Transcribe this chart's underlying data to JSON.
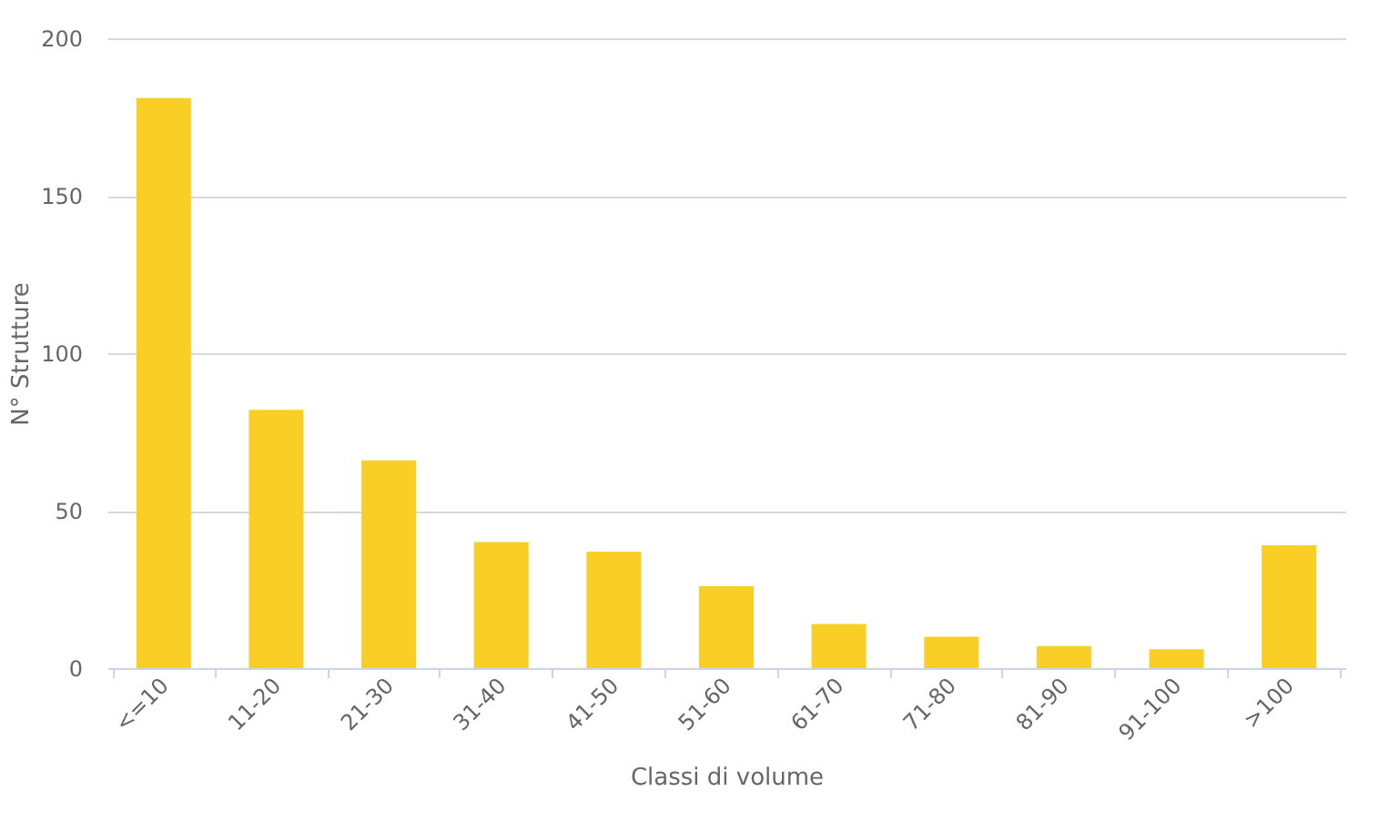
{
  "chart_data": {
    "type": "bar",
    "xlabel": "Classi di volume",
    "ylabel": "N° Strutture",
    "categories": [
      "<=10",
      "11-20",
      "21-30",
      "31-40",
      "41-50",
      "51-60",
      "61-70",
      "71-80",
      "81-90",
      "91-100",
      ">100"
    ],
    "values": [
      181,
      82,
      66,
      40,
      37,
      26,
      14,
      10,
      7,
      6,
      39
    ],
    "color": "#f9cf26",
    "ylim": [
      0,
      200
    ],
    "yticks": [
      0,
      50,
      100,
      150,
      200
    ],
    "grid": "y"
  }
}
